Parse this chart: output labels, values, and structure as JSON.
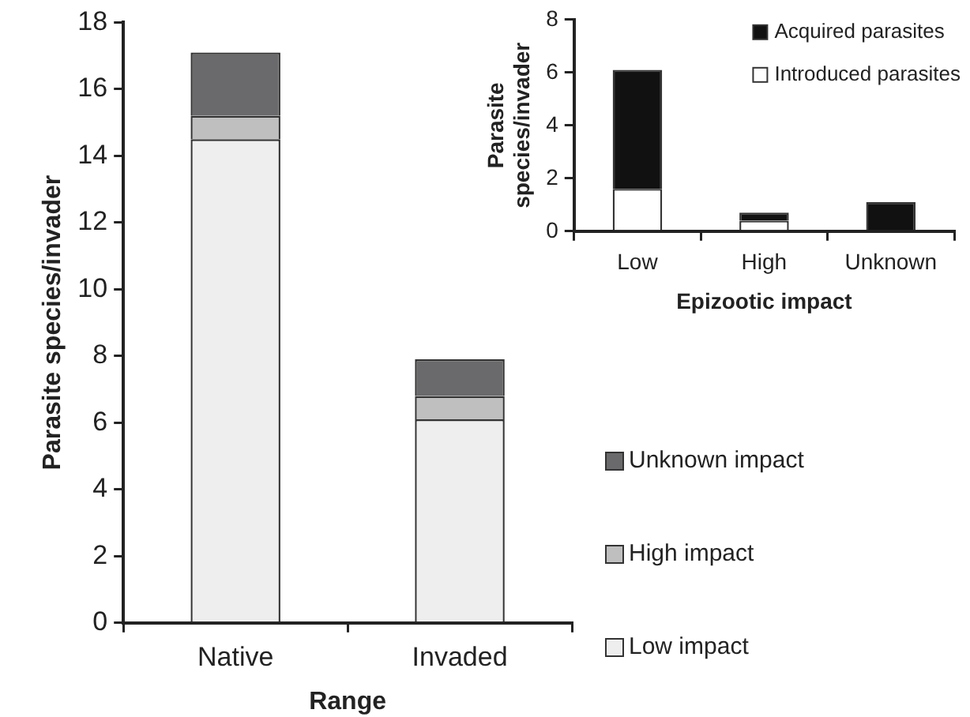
{
  "chart_data": [
    {
      "type": "bar",
      "stacked": true,
      "xlabel": "Range",
      "ylabel": "Parasite species/invader",
      "categories": [
        "Native",
        "Invaded"
      ],
      "ylim": [
        0,
        18
      ],
      "yticks": [
        0,
        2,
        4,
        6,
        8,
        10,
        12,
        14,
        16,
        18
      ],
      "grid": false,
      "legend": "right",
      "series": [
        {
          "name": "Low impact",
          "color": "#eeeeee",
          "values": [
            14.5,
            6.1
          ]
        },
        {
          "name": "High impact",
          "color": "#bfbfbf",
          "values": [
            0.7,
            0.7
          ]
        },
        {
          "name": "Unknown impact",
          "color": "#6a6a6c",
          "values": [
            1.9,
            1.1
          ]
        }
      ]
    },
    {
      "type": "bar",
      "stacked": true,
      "xlabel": "Epizootic impact",
      "ylabel": "Parasite species/invader",
      "categories": [
        "Low",
        "High",
        "Unknown"
      ],
      "ylim": [
        0,
        8
      ],
      "yticks": [
        0,
        2,
        4,
        6,
        8
      ],
      "grid": false,
      "legend": "top right",
      "series": [
        {
          "name": "Introduced parasites",
          "color": "#ffffff",
          "values": [
            1.6,
            0.4,
            0
          ]
        },
        {
          "name": "Acquired parasites",
          "color": "#111111",
          "values": [
            4.5,
            0.3,
            1.1
          ]
        }
      ]
    }
  ]
}
